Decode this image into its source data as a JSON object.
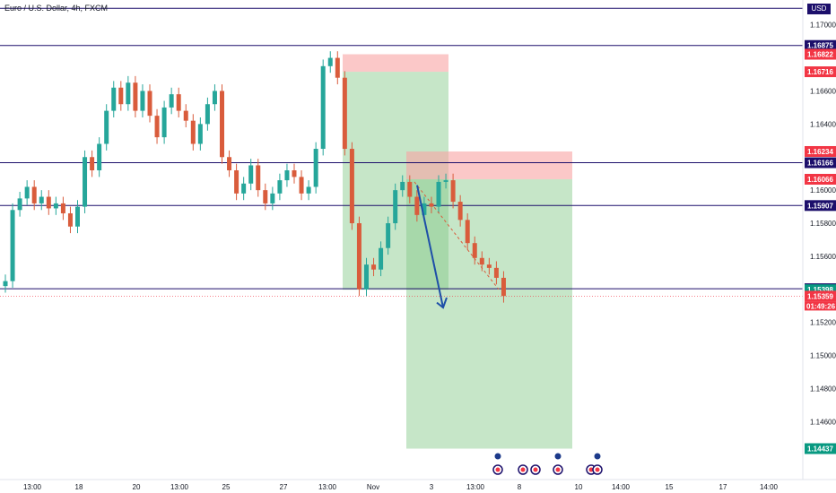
{
  "symbol": "Euro / U.S. Dollar, 4h, FXCM",
  "currency_label": "USD",
  "colors": {
    "up": "#26a69a",
    "down": "#d95c3c",
    "hline": "#1c0f6b",
    "profit_zone": "#81c784",
    "stop_zone": "#f8a3a3",
    "arrow": "#1e4fa8",
    "price_green": "#089981",
    "price_red": "#f23645"
  },
  "x_axis_labels": [
    "13:00",
    "18",
    "20",
    "13:00",
    "25",
    "27",
    "13:00",
    "Nov",
    "3",
    "13:00",
    "8",
    "10",
    "14:00",
    "15",
    "17",
    "14:00"
  ],
  "chart_data": {
    "type": "candlestick",
    "ylim": [
      1.1425,
      1.1715
    ],
    "y_ticks": [
      1.17,
      1.166,
      1.164,
      1.16,
      1.158,
      1.156,
      1.152,
      1.15,
      1.148,
      1.146
    ],
    "y_tick_labels": [
      "1.17000",
      "1.16600",
      "1.16400",
      "1.16000",
      "1.15800",
      "1.15600",
      "1.15200",
      "1.15000",
      "1.14800",
      "1.14600"
    ],
    "horizontal_levels": [
      1.171,
      1.16875,
      1.16166,
      1.15907,
      1.15404
    ],
    "price_labels": [
      {
        "value": 1.171,
        "text": "1.1...",
        "kind": "level"
      },
      {
        "value": 1.16875,
        "text": "1.16875",
        "kind": "level"
      },
      {
        "value": 1.16822,
        "text": "1.16822",
        "kind": "red"
      },
      {
        "value": 1.16716,
        "text": "1.16716",
        "kind": "red"
      },
      {
        "value": 1.16234,
        "text": "1.16234",
        "kind": "red"
      },
      {
        "value": 1.16166,
        "text": "1.16166",
        "kind": "level"
      },
      {
        "value": 1.16066,
        "text": "1.16066",
        "kind": "red"
      },
      {
        "value": 1.15907,
        "text": "1.15907",
        "kind": "level"
      },
      {
        "value": 1.15404,
        "text": "1.15404",
        "kind": "level"
      },
      {
        "value": 1.15398,
        "text": "1.15398",
        "kind": "green"
      },
      {
        "value": 1.15359,
        "text": "1.15359",
        "kind": "red"
      },
      {
        "value": 1.14437,
        "text": "1.14437",
        "kind": "green"
      }
    ],
    "countdown": "01:49:26",
    "position_1": {
      "entry": 1.15398,
      "stop": 1.16822,
      "target": 1.16716,
      "start_index": 0.38,
      "end_index": 0.46
    },
    "position_2": {
      "entry": 1.16066,
      "stop": 1.16234,
      "target": 1.14437
    },
    "closes": [
      1.1545,
      1.1588,
      1.1595,
      1.1602,
      1.1592,
      1.1596,
      1.1589,
      1.1592,
      1.1586,
      1.1578,
      1.159,
      1.162,
      1.1612,
      1.1628,
      1.1648,
      1.1662,
      1.1652,
      1.1665,
      1.1648,
      1.166,
      1.1645,
      1.1632,
      1.165,
      1.1658,
      1.1648,
      1.1642,
      1.1628,
      1.164,
      1.1652,
      1.166,
      1.162,
      1.1612,
      1.1598,
      1.1604,
      1.1615,
      1.16,
      1.1592,
      1.1598,
      1.1606,
      1.1612,
      1.1608,
      1.1598,
      1.1602,
      1.1625,
      1.1675,
      1.168,
      1.1668,
      1.1625,
      1.158,
      1.154,
      1.1555,
      1.1552,
      1.1565,
      1.158,
      1.16,
      1.1605,
      1.1596,
      1.1585,
      1.1592,
      1.159,
      1.1605,
      1.1606,
      1.1593,
      1.1582,
      1.1568,
      1.1559,
      1.1555,
      1.1553,
      1.1547,
      1.1536
    ]
  }
}
